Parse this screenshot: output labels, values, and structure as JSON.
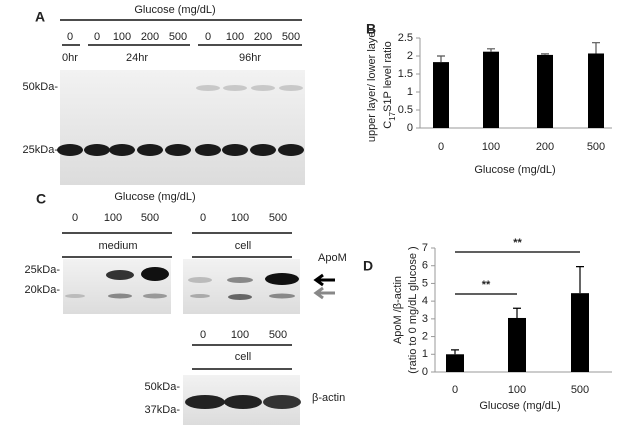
{
  "panel_labels": [
    "A",
    "B",
    "C",
    "D"
  ],
  "blot_a": {
    "title": "Glucose (mg/dL)",
    "lanes": [
      "0",
      "0",
      "100",
      "200",
      "500",
      "0",
      "100",
      "200",
      "500"
    ],
    "times": [
      "0hr",
      "24hr",
      "96hr"
    ],
    "markers": [
      "50kDa-",
      "25kDa-"
    ]
  },
  "blot_c": {
    "title": "Glucose (mg/dL)",
    "lanes": [
      "0",
      "100",
      "500",
      "0",
      "100",
      "500"
    ],
    "groups": [
      "medium",
      "cell"
    ],
    "markers": [
      "25kDa-",
      "20kDa-"
    ],
    "target": "ApoM"
  },
  "blot_c_actin": {
    "lanes": [
      "0",
      "100",
      "500"
    ],
    "group": "cell",
    "markers": [
      "50kDa-",
      "37kDa-"
    ],
    "target": "β-actin"
  },
  "chart_data": [
    {
      "type": "bar",
      "ylabel": [
        "upper layer/ lower layer",
        [
          "C",
          "17",
          "S1P  level ratio"
        ]
      ],
      "xlabel": "Glucose (mg/dL)",
      "categories": [
        "0",
        "100",
        "200",
        "500"
      ],
      "values": [
        1.83,
        2.12,
        2.03,
        2.07
      ],
      "errors": [
        0.17,
        0.08,
        0.03,
        0.3
      ],
      "color": "#000000",
      "ylim": [
        0,
        2.5
      ],
      "yticks": [
        0,
        0.5,
        1,
        1.5,
        2,
        2.5
      ]
    },
    {
      "type": "bar",
      "ylabel": [
        "ApoM /β-actin",
        "(ratio to 0 mg/dL glucose )"
      ],
      "xlabel": "Glucose  (mg/dL)",
      "categories": [
        "0",
        "100",
        "500"
      ],
      "values": [
        1.0,
        3.05,
        4.45
      ],
      "errors": [
        0.25,
        0.55,
        1.5
      ],
      "color": "#000000",
      "ylim": [
        0,
        7
      ],
      "yticks": [
        0,
        1,
        2,
        3,
        4,
        5,
        6,
        7
      ],
      "annotations": [
        "**",
        "**"
      ]
    }
  ]
}
